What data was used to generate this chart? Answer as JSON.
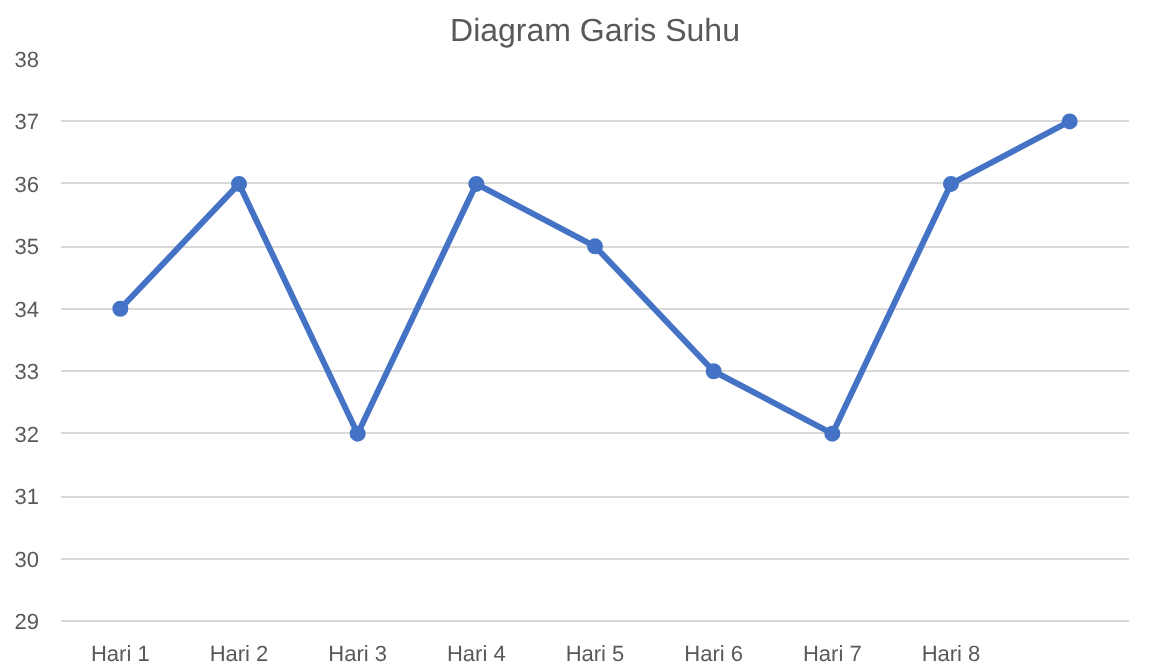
{
  "chart_data": {
    "type": "line",
    "title": "Diagram Garis Suhu",
    "categories": [
      "Hari 1",
      "Hari 2",
      "Hari 3",
      "Hari 4",
      "Hari 5",
      "Hari 6",
      "Hari 7",
      "Hari 8",
      null
    ],
    "series": [
      {
        "color": "#4472c4",
        "values": [
          34,
          36,
          32,
          36,
          35,
          33,
          32,
          36,
          37
        ]
      }
    ],
    "ylim": [
      29,
      38
    ],
    "yticks": [
      29,
      30,
      31,
      32,
      33,
      34,
      35,
      36,
      37,
      38
    ],
    "grid": "y",
    "marker": "circle",
    "line_style": "solid"
  }
}
